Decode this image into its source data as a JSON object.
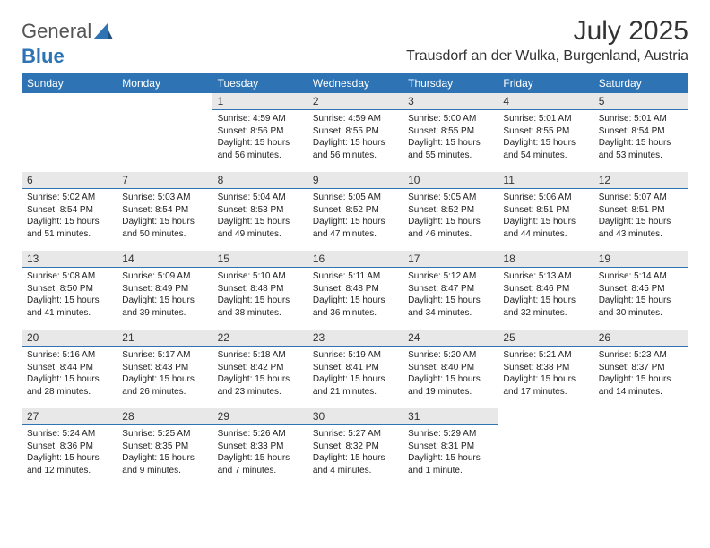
{
  "logo": {
    "text_a": "General",
    "text_b": "Blue"
  },
  "title": "July 2025",
  "location": "Trausdorf an der Wulka, Burgenland, Austria",
  "colors": {
    "header_bg": "#2e74b5",
    "header_fg": "#ffffff",
    "daynum_bg": "#e8e8e8",
    "line": "#2e74b5",
    "body_bg": "#ffffff",
    "text": "#000000",
    "logo_gray": "#555555",
    "logo_blue": "#2e74b5"
  },
  "day_names": [
    "Sunday",
    "Monday",
    "Tuesday",
    "Wednesday",
    "Thursday",
    "Friday",
    "Saturday"
  ],
  "sunrise_label": "Sunrise:",
  "sunset_label": "Sunset:",
  "daylight_label": "Daylight:",
  "weeks": [
    [
      {
        "empty": true
      },
      {
        "empty": true
      },
      {
        "n": "1",
        "sr": "4:59 AM",
        "ss": "8:56 PM",
        "dl": "15 hours and 56 minutes."
      },
      {
        "n": "2",
        "sr": "4:59 AM",
        "ss": "8:55 PM",
        "dl": "15 hours and 56 minutes."
      },
      {
        "n": "3",
        "sr": "5:00 AM",
        "ss": "8:55 PM",
        "dl": "15 hours and 55 minutes."
      },
      {
        "n": "4",
        "sr": "5:01 AM",
        "ss": "8:55 PM",
        "dl": "15 hours and 54 minutes."
      },
      {
        "n": "5",
        "sr": "5:01 AM",
        "ss": "8:54 PM",
        "dl": "15 hours and 53 minutes."
      }
    ],
    [
      {
        "n": "6",
        "sr": "5:02 AM",
        "ss": "8:54 PM",
        "dl": "15 hours and 51 minutes."
      },
      {
        "n": "7",
        "sr": "5:03 AM",
        "ss": "8:54 PM",
        "dl": "15 hours and 50 minutes."
      },
      {
        "n": "8",
        "sr": "5:04 AM",
        "ss": "8:53 PM",
        "dl": "15 hours and 49 minutes."
      },
      {
        "n": "9",
        "sr": "5:05 AM",
        "ss": "8:52 PM",
        "dl": "15 hours and 47 minutes."
      },
      {
        "n": "10",
        "sr": "5:05 AM",
        "ss": "8:52 PM",
        "dl": "15 hours and 46 minutes."
      },
      {
        "n": "11",
        "sr": "5:06 AM",
        "ss": "8:51 PM",
        "dl": "15 hours and 44 minutes."
      },
      {
        "n": "12",
        "sr": "5:07 AM",
        "ss": "8:51 PM",
        "dl": "15 hours and 43 minutes."
      }
    ],
    [
      {
        "n": "13",
        "sr": "5:08 AM",
        "ss": "8:50 PM",
        "dl": "15 hours and 41 minutes."
      },
      {
        "n": "14",
        "sr": "5:09 AM",
        "ss": "8:49 PM",
        "dl": "15 hours and 39 minutes."
      },
      {
        "n": "15",
        "sr": "5:10 AM",
        "ss": "8:48 PM",
        "dl": "15 hours and 38 minutes."
      },
      {
        "n": "16",
        "sr": "5:11 AM",
        "ss": "8:48 PM",
        "dl": "15 hours and 36 minutes."
      },
      {
        "n": "17",
        "sr": "5:12 AM",
        "ss": "8:47 PM",
        "dl": "15 hours and 34 minutes."
      },
      {
        "n": "18",
        "sr": "5:13 AM",
        "ss": "8:46 PM",
        "dl": "15 hours and 32 minutes."
      },
      {
        "n": "19",
        "sr": "5:14 AM",
        "ss": "8:45 PM",
        "dl": "15 hours and 30 minutes."
      }
    ],
    [
      {
        "n": "20",
        "sr": "5:16 AM",
        "ss": "8:44 PM",
        "dl": "15 hours and 28 minutes."
      },
      {
        "n": "21",
        "sr": "5:17 AM",
        "ss": "8:43 PM",
        "dl": "15 hours and 26 minutes."
      },
      {
        "n": "22",
        "sr": "5:18 AM",
        "ss": "8:42 PM",
        "dl": "15 hours and 23 minutes."
      },
      {
        "n": "23",
        "sr": "5:19 AM",
        "ss": "8:41 PM",
        "dl": "15 hours and 21 minutes."
      },
      {
        "n": "24",
        "sr": "5:20 AM",
        "ss": "8:40 PM",
        "dl": "15 hours and 19 minutes."
      },
      {
        "n": "25",
        "sr": "5:21 AM",
        "ss": "8:38 PM",
        "dl": "15 hours and 17 minutes."
      },
      {
        "n": "26",
        "sr": "5:23 AM",
        "ss": "8:37 PM",
        "dl": "15 hours and 14 minutes."
      }
    ],
    [
      {
        "n": "27",
        "sr": "5:24 AM",
        "ss": "8:36 PM",
        "dl": "15 hours and 12 minutes."
      },
      {
        "n": "28",
        "sr": "5:25 AM",
        "ss": "8:35 PM",
        "dl": "15 hours and 9 minutes."
      },
      {
        "n": "29",
        "sr": "5:26 AM",
        "ss": "8:33 PM",
        "dl": "15 hours and 7 minutes."
      },
      {
        "n": "30",
        "sr": "5:27 AM",
        "ss": "8:32 PM",
        "dl": "15 hours and 4 minutes."
      },
      {
        "n": "31",
        "sr": "5:29 AM",
        "ss": "8:31 PM",
        "dl": "15 hours and 1 minute."
      },
      {
        "empty": true
      },
      {
        "empty": true
      }
    ]
  ]
}
